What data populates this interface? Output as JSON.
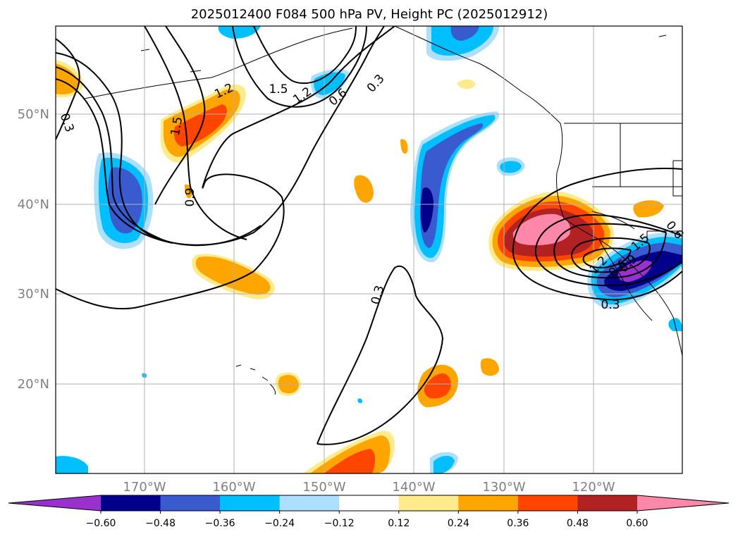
{
  "title": "2025012400 F084 500 hPa PV, Height PC (2025012912)",
  "map": {
    "lat_labels": [
      "50°N",
      "40°N",
      "30°N",
      "20°N"
    ],
    "lon_labels": [
      "170°W",
      "160°W",
      "150°W",
      "140°W",
      "130°W",
      "120°W"
    ],
    "gridlines": true,
    "contour_labels": [
      "0.3",
      "1.2",
      "1.5",
      "1.2",
      "0.6",
      "0.3",
      "1.5",
      "0.9",
      "0.6",
      "0.3",
      "0.3",
      "0.6",
      "0.9",
      "1.2",
      "1.5"
    ]
  },
  "colorbar": {
    "extend": "both",
    "tick_labels": [
      "−0.60",
      "−0.48",
      "−0.36",
      "−0.24",
      "−0.12",
      "0.12",
      "0.24",
      "0.36",
      "0.48",
      "0.60"
    ],
    "colors": [
      "#9932CC",
      "#00008B",
      "#3A5BD0",
      "#00BFFF",
      "#ADDFFF",
      "#FFFFFF",
      "#FFEA8C",
      "#FFA500",
      "#FF4500",
      "#B22222",
      "#FF88AA"
    ]
  },
  "colors": {
    "purple": "#9932CC",
    "navy": "#00008B",
    "blue": "#3A5BD0",
    "cyan": "#00BFFF",
    "lightblue": "#ADDFFF",
    "yellow": "#FFEA8C",
    "orange": "#FFA500",
    "redorange": "#FF4500",
    "firebrick": "#B22222",
    "pink": "#FF88AA"
  }
}
